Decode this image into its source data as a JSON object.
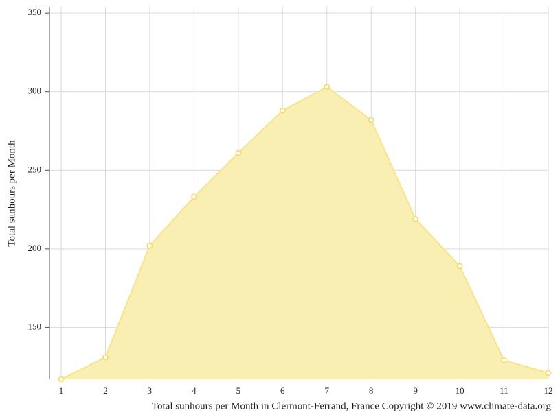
{
  "chart_data": {
    "type": "area",
    "title": "Total sunhours per Month in Clermont-Ferrand, France Copyright © 2019 www.climate-data.org",
    "y_label": "Total sunhours per Month",
    "x": [
      1,
      2,
      3,
      4,
      5,
      6,
      7,
      8,
      9,
      10,
      11,
      12
    ],
    "values": [
      117,
      131,
      202,
      233,
      261,
      288,
      303,
      282,
      219,
      189,
      129,
      121
    ],
    "color": "#f9eeae",
    "line_color": "#f7e38a",
    "marker_color": "#f2d95a",
    "xlim": [
      1,
      12
    ],
    "xticks": [
      1,
      2,
      3,
      4,
      5,
      6,
      7,
      8,
      9,
      10,
      11,
      12
    ],
    "ylim": [
      117,
      354
    ],
    "yticks": [
      150,
      200,
      250,
      300,
      350
    ],
    "grid": true
  }
}
